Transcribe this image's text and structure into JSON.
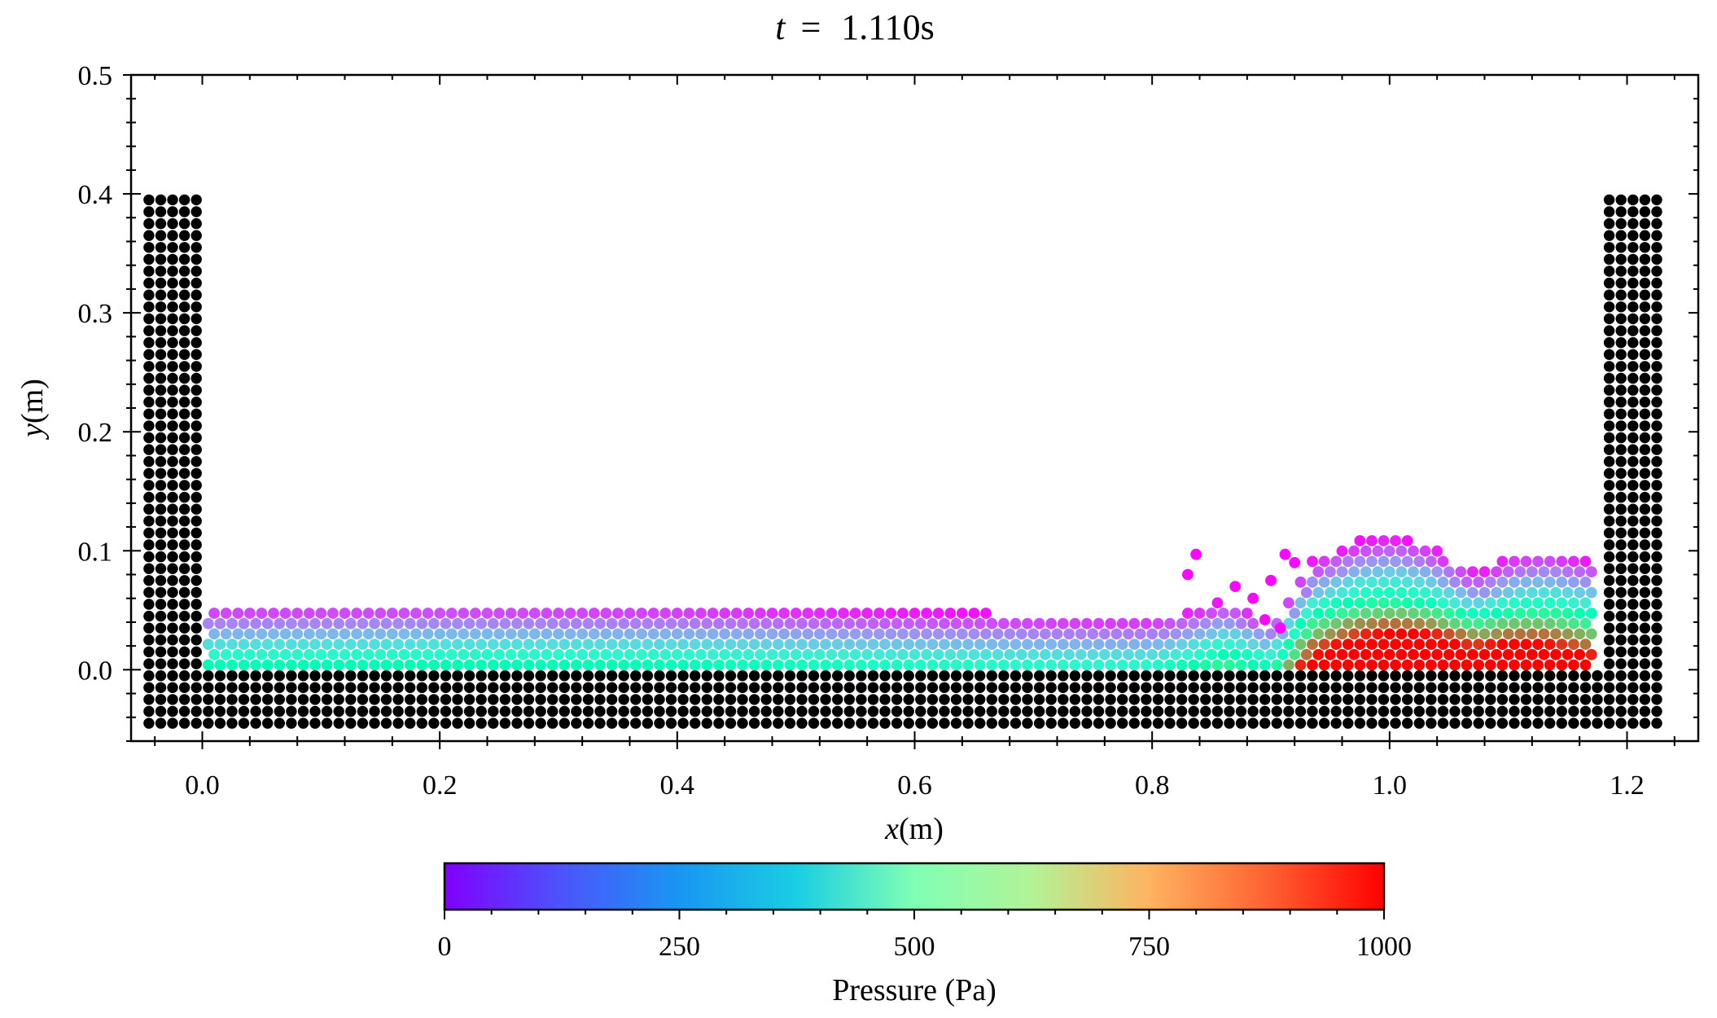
{
  "chart_data": {
    "type": "scatter",
    "title": "t = 1.110s",
    "title_parts": {
      "var": "t",
      "eq": "=",
      "value": "1.110s"
    },
    "xlabel": "x(m)",
    "xlabel_parts": {
      "var": "x",
      "unit": "(m)"
    },
    "ylabel": "y(m)",
    "ylabel_parts": {
      "var": "y",
      "unit": "(m)"
    },
    "xlim": [
      -0.06,
      1.26
    ],
    "ylim": [
      -0.06,
      0.5
    ],
    "xticks": [
      "0.0",
      "0.2",
      "0.4",
      "0.6",
      "0.8",
      "1.0",
      "1.2"
    ],
    "yticks": [
      "0.0",
      "0.1",
      "0.2",
      "0.3",
      "0.4",
      "0.5"
    ],
    "grid": false,
    "particle_spacing": 0.01,
    "boundary": {
      "color": "#000000",
      "left_wall": {
        "x_range": [
          -0.045,
          -0.005
        ],
        "y_range": [
          -0.045,
          0.395
        ]
      },
      "right_wall": {
        "x_range": [
          1.185,
          1.225
        ],
        "y_range": [
          -0.045,
          0.395
        ]
      },
      "floor": {
        "x_range": [
          0.005,
          1.175
        ],
        "y_range": [
          -0.045,
          -0.005
        ]
      }
    },
    "fluid": {
      "x_range": [
        0.005,
        1.175
      ],
      "pressure_colormap": "rainbow",
      "surface_profile": [
        [
          0.0,
          0.055
        ],
        [
          0.2,
          0.056
        ],
        [
          0.4,
          0.054
        ],
        [
          0.6,
          0.049
        ],
        [
          0.75,
          0.045
        ],
        [
          0.8,
          0.044
        ],
        [
          0.83,
          0.05
        ],
        [
          0.86,
          0.058
        ],
        [
          0.9,
          0.035
        ],
        [
          0.93,
          0.09
        ],
        [
          0.97,
          0.108
        ],
        [
          1.0,
          0.112
        ],
        [
          1.03,
          0.105
        ],
        [
          1.07,
          0.082
        ],
        [
          1.1,
          0.096
        ],
        [
          1.13,
          0.1
        ],
        [
          1.175,
          0.09
        ]
      ],
      "splash_particles": [
        [
          0.837,
          0.097
        ],
        [
          0.83,
          0.08
        ],
        [
          0.87,
          0.07
        ],
        [
          0.885,
          0.06
        ],
        [
          0.9,
          0.075
        ],
        [
          0.912,
          0.097
        ],
        [
          0.92,
          0.09
        ],
        [
          0.895,
          0.042
        ],
        [
          0.908,
          0.035
        ]
      ],
      "high_pressure_zone": {
        "x_center": 1.05,
        "width": 0.14,
        "boost": 520
      }
    },
    "colorbar": {
      "label": "Pressure (Pa)",
      "min": 0,
      "max": 1000,
      "ticks": [
        "0",
        "250",
        "500",
        "750",
        "1000"
      ],
      "tick_values": [
        0,
        250,
        500,
        750,
        1000
      ],
      "minor_ticks": [
        50,
        100,
        150,
        200,
        300,
        350,
        400,
        450,
        550,
        600,
        650,
        700,
        800,
        850,
        900,
        950
      ]
    }
  }
}
